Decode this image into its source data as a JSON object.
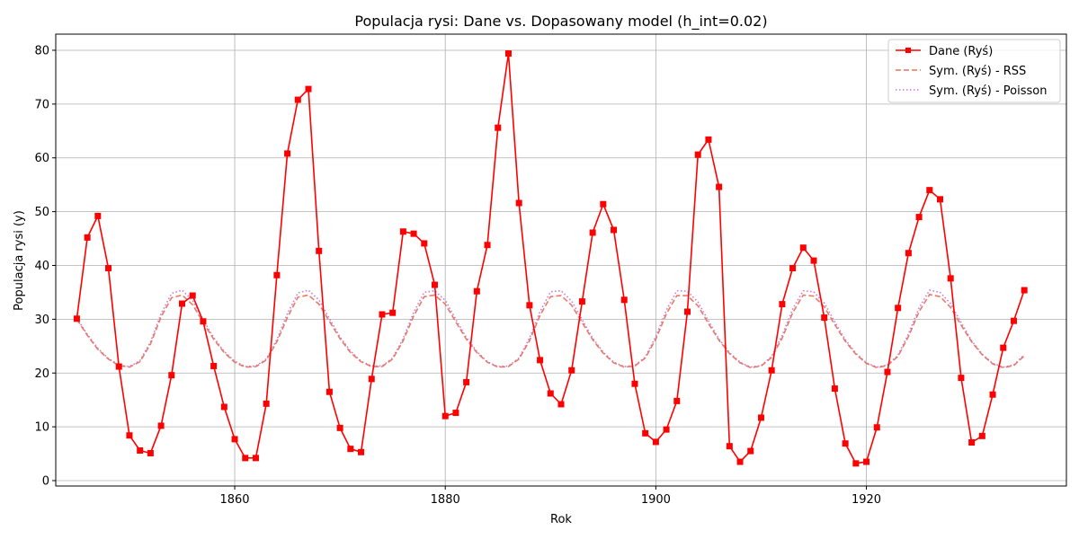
{
  "chart_data": {
    "type": "line",
    "title": "Populacja rysi: Dane vs. Dopasowany model (h_int=0.02)",
    "xlabel": "Rok",
    "ylabel": "Populacja rysi (y)",
    "xlim": [
      1843,
      1939
    ],
    "ylim": [
      -1,
      83
    ],
    "xticks": [
      1860,
      1880,
      1900,
      1920
    ],
    "yticks": [
      0,
      10,
      20,
      30,
      40,
      50,
      60,
      70,
      80
    ],
    "grid": true,
    "legend_position": "top-right",
    "x": [
      1845,
      1846,
      1847,
      1848,
      1849,
      1850,
      1851,
      1852,
      1853,
      1854,
      1855,
      1856,
      1857,
      1858,
      1859,
      1860,
      1861,
      1862,
      1863,
      1864,
      1865,
      1866,
      1867,
      1868,
      1869,
      1870,
      1871,
      1872,
      1873,
      1874,
      1875,
      1876,
      1877,
      1878,
      1879,
      1880,
      1881,
      1882,
      1883,
      1884,
      1885,
      1886,
      1887,
      1888,
      1889,
      1890,
      1891,
      1892,
      1893,
      1894,
      1895,
      1896,
      1897,
      1898,
      1899,
      1900,
      1901,
      1902,
      1903,
      1904,
      1905,
      1906,
      1907,
      1908,
      1909,
      1910,
      1911,
      1912,
      1913,
      1914,
      1915,
      1916,
      1917,
      1918,
      1919,
      1920,
      1921,
      1922,
      1923,
      1924,
      1925,
      1926,
      1927,
      1928,
      1929,
      1930,
      1931,
      1932,
      1933,
      1934,
      1935
    ],
    "series": [
      {
        "name": "Dane (Ryś)",
        "color": "#ff0000",
        "style": "solid-square-markers",
        "values": [
          30.1,
          45.2,
          49.2,
          39.5,
          21.2,
          8.4,
          5.6,
          5.1,
          10.2,
          19.6,
          32.9,
          34.4,
          29.6,
          21.3,
          13.7,
          7.7,
          4.2,
          4.2,
          14.3,
          38.2,
          60.8,
          70.8,
          72.8,
          42.7,
          16.5,
          9.8,
          5.9,
          5.3,
          18.9,
          30.9,
          31.2,
          46.3,
          45.9,
          44.1,
          36.4,
          12.0,
          12.6,
          18.3,
          35.2,
          43.8,
          65.6,
          79.4,
          51.6,
          32.6,
          22.4,
          16.2,
          14.2,
          20.5,
          33.3,
          46.1,
          51.4,
          46.6,
          33.6,
          18.0,
          8.8,
          7.2,
          9.5,
          14.8,
          31.4,
          60.6,
          63.4,
          54.6,
          6.4,
          3.5,
          5.5,
          11.7,
          20.5,
          32.8,
          39.5,
          43.3,
          40.9,
          30.3,
          17.1,
          6.9,
          3.2,
          3.5,
          9.9,
          20.2,
          32.1,
          42.3,
          49.0,
          54.0,
          52.3,
          37.6,
          19.1,
          7.1,
          8.3,
          16.0,
          24.7,
          29.7,
          35.4
        ]
      },
      {
        "name": "Sym. (Ryś) - RSS",
        "color": "#e8735e",
        "style": "dashed",
        "values": [
          30.0,
          27.0,
          24.4,
          22.6,
          21.4,
          21.1,
          22.1,
          25.4,
          30.4,
          34.0,
          34.5,
          32.7,
          29.4,
          26.3,
          23.8,
          22.0,
          21.1,
          21.2,
          22.4,
          25.8,
          30.3,
          34.1,
          34.5,
          32.8,
          29.6,
          26.4,
          23.8,
          22.1,
          21.2,
          21.2,
          22.6,
          26.0,
          30.6,
          34.2,
          34.5,
          32.8,
          29.5,
          26.3,
          23.8,
          22.0,
          21.1,
          21.2,
          22.6,
          26.0,
          30.7,
          34.2,
          34.4,
          32.6,
          29.4,
          26.2,
          23.7,
          21.9,
          21.1,
          21.3,
          22.8,
          26.3,
          31.0,
          34.4,
          34.4,
          32.5,
          29.2,
          26.1,
          23.6,
          21.9,
          21.0,
          21.3,
          22.9,
          26.5,
          31.2,
          34.5,
          34.3,
          32.3,
          29.0,
          25.9,
          23.5,
          21.8,
          21.0,
          21.4,
          23.1,
          26.8,
          31.4,
          34.6,
          34.2,
          32.2,
          28.9,
          25.8,
          23.4,
          21.7,
          21.0,
          21.4,
          23.2
        ]
      },
      {
        "name": "Sym. (Ryś) - Poisson",
        "color": "#cc77dd",
        "style": "dotted",
        "values": [
          30.2,
          27.2,
          24.6,
          22.7,
          21.5,
          21.2,
          22.3,
          25.8,
          31.0,
          34.8,
          35.4,
          33.5,
          29.9,
          26.6,
          24.0,
          22.2,
          21.2,
          21.3,
          22.6,
          26.2,
          31.0,
          34.9,
          35.4,
          33.6,
          30.1,
          26.7,
          24.1,
          22.2,
          21.3,
          21.3,
          22.8,
          26.4,
          31.3,
          35.0,
          35.3,
          33.5,
          30.0,
          26.6,
          24.0,
          22.1,
          21.2,
          21.3,
          22.8,
          26.5,
          31.4,
          35.1,
          35.3,
          33.4,
          29.9,
          26.5,
          23.9,
          22.0,
          21.2,
          21.4,
          23.0,
          26.8,
          31.7,
          35.3,
          35.2,
          33.2,
          29.7,
          26.3,
          23.8,
          22.0,
          21.1,
          21.4,
          23.1,
          27.0,
          31.9,
          35.3,
          35.1,
          33.0,
          29.5,
          26.2,
          23.7,
          21.9,
          21.1,
          21.5,
          23.3,
          27.3,
          32.1,
          35.4,
          35.0,
          32.9,
          29.4,
          26.0,
          23.5,
          21.8,
          21.1,
          21.5,
          23.4
        ]
      }
    ]
  }
}
